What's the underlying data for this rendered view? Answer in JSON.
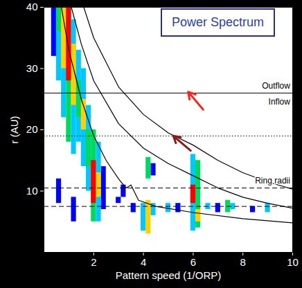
{
  "chart_data": {
    "type": "heatmap",
    "title": "Power Spectrum",
    "x_label": "Pattern speed (1/ORP)",
    "y_label": "r (AU)",
    "xlim": [
      0,
      10
    ],
    "ylim": [
      0,
      40
    ],
    "xticks": [
      2,
      4,
      6,
      8,
      10
    ],
    "yticks": [
      10,
      20,
      30,
      40
    ],
    "zlim": [
      1,
      5
    ],
    "cell_width": 0.2,
    "cells": [
      {
        "x": 0.4,
        "y1": 32,
        "y2": 40,
        "value": 1
      },
      {
        "x": 2.4,
        "y1": 7,
        "y2": 14,
        "value": 1
      },
      {
        "x": 3.0,
        "y1": 8,
        "y2": 9,
        "value": 1
      },
      {
        "x": 3.2,
        "y1": 9,
        "y2": 11,
        "value": 1
      },
      {
        "x": 3.6,
        "y1": 6.5,
        "y2": 8,
        "value": 1
      },
      {
        "x": 1.2,
        "y1": 5,
        "y2": 9,
        "value": 1
      },
      {
        "x": 0.6,
        "y1": 8,
        "y2": 12,
        "value": 1
      },
      {
        "x": 4.4,
        "y1": 12.5,
        "y2": 14.5,
        "value": 1
      },
      {
        "x": 5.4,
        "y1": 6.5,
        "y2": 8,
        "value": 1
      },
      {
        "x": 7.0,
        "y1": 6.5,
        "y2": 8,
        "value": 1
      },
      {
        "x": 8.4,
        "y1": 6.5,
        "y2": 7.5,
        "value": 1
      },
      {
        "x": 0.6,
        "y1": 28,
        "y2": 40,
        "value": 2
      },
      {
        "x": 0.8,
        "y1": 22,
        "y2": 40,
        "value": 2
      },
      {
        "x": 1.2,
        "y1": 16,
        "y2": 38,
        "value": 2
      },
      {
        "x": 1.4,
        "y1": 18,
        "y2": 33,
        "value": 2
      },
      {
        "x": 1.6,
        "y1": 14,
        "y2": 30,
        "value": 2
      },
      {
        "x": 1.8,
        "y1": 10,
        "y2": 24,
        "value": 2
      },
      {
        "x": 2.2,
        "y1": 5,
        "y2": 18,
        "value": 2
      },
      {
        "x": 4.0,
        "y1": 3.5,
        "y2": 8,
        "value": 2
      },
      {
        "x": 4.4,
        "y1": 6,
        "y2": 8,
        "value": 2
      },
      {
        "x": 5.0,
        "y1": 6.5,
        "y2": 8,
        "value": 2
      },
      {
        "x": 6.0,
        "y1": 3.5,
        "y2": 16,
        "value": 2
      },
      {
        "x": 6.6,
        "y1": 7,
        "y2": 8,
        "value": 2
      },
      {
        "x": 7.6,
        "y1": 7,
        "y2": 8,
        "value": 2
      },
      {
        "x": 9.0,
        "y1": 6.5,
        "y2": 8,
        "value": 2
      },
      {
        "x": 0.6,
        "y1": 36,
        "y2": 40,
        "value": 3
      },
      {
        "x": 1.0,
        "y1": 18,
        "y2": 40,
        "value": 3
      },
      {
        "x": 1.4,
        "y1": 22,
        "y2": 28,
        "value": 3
      },
      {
        "x": 1.8,
        "y1": 14,
        "y2": 20,
        "value": 3
      },
      {
        "x": 2.0,
        "y1": 5,
        "y2": 20,
        "value": 3
      },
      {
        "x": 4.2,
        "y1": 12,
        "y2": 15.5,
        "value": 3
      },
      {
        "x": 6.2,
        "y1": 4,
        "y2": 15,
        "value": 3
      },
      {
        "x": 7.4,
        "y1": 6.5,
        "y2": 8.5,
        "value": 3
      },
      {
        "x": 0.8,
        "y1": 30,
        "y2": 40,
        "value": 4
      },
      {
        "x": 1.2,
        "y1": 24,
        "y2": 34,
        "value": 4
      },
      {
        "x": 1.6,
        "y1": 20,
        "y2": 25,
        "value": 4
      },
      {
        "x": 2.2,
        "y1": 9,
        "y2": 13,
        "value": 4
      },
      {
        "x": 4.2,
        "y1": 3,
        "y2": 8.5,
        "value": 4
      },
      {
        "x": 6.2,
        "y1": 5,
        "y2": 7,
        "value": 4
      },
      {
        "x": 1.0,
        "y1": 28,
        "y2": 40,
        "value": 5
      },
      {
        "x": 2.0,
        "y1": 8,
        "y2": 15,
        "value": 5
      },
      {
        "x": 6.0,
        "y1": 8,
        "y2": 11,
        "value": 5
      }
    ],
    "curves": [
      {
        "x": [
          1.6,
          2,
          3,
          4,
          5,
          6,
          7,
          8,
          9,
          10
        ],
        "y": [
          40,
          35,
          27,
          22.5,
          19.5,
          17.5,
          15,
          13,
          11.5,
          10.3
        ]
      },
      {
        "x": [
          1.1,
          1.5,
          2,
          3,
          4,
          5,
          6,
          7,
          8,
          9,
          10
        ],
        "y": [
          40,
          34,
          28,
          21,
          17,
          14.5,
          12.5,
          10.5,
          9,
          8,
          7.2
        ]
      },
      {
        "x": [
          0.7,
          1,
          1.5,
          2,
          2.5,
          3,
          3.3,
          3.5,
          3.8,
          4.5,
          6,
          8,
          10
        ],
        "y": [
          40,
          33,
          25,
          19,
          15,
          12,
          10.5,
          11,
          8.5,
          7.5,
          6.5,
          5.5,
          4.8
        ]
      }
    ],
    "lines": [
      {
        "y": 26,
        "line_style": "solid"
      },
      {
        "y": 19,
        "line_style": "dotted"
      },
      {
        "y": 10.5,
        "line_style": "dashed"
      },
      {
        "y": 7.5,
        "line_style": "dashed"
      }
    ],
    "annotations": [
      {
        "text": "Outflow",
        "x": 9.9,
        "y": 27.2
      },
      {
        "text": "Inflow",
        "x": 9.9,
        "y": 24.6
      },
      {
        "text": "Ring radii",
        "x": 9.9,
        "y": 11.7
      }
    ],
    "arrows": [
      {
        "x1": 6.4,
        "y1": 23.3,
        "x2": 5.8,
        "y2": 26.2,
        "color": "#ff2020"
      },
      {
        "x1": 5.9,
        "y1": 16.6,
        "x2": 5.2,
        "y2": 19.0,
        "color": "#8b1a1a"
      }
    ]
  }
}
